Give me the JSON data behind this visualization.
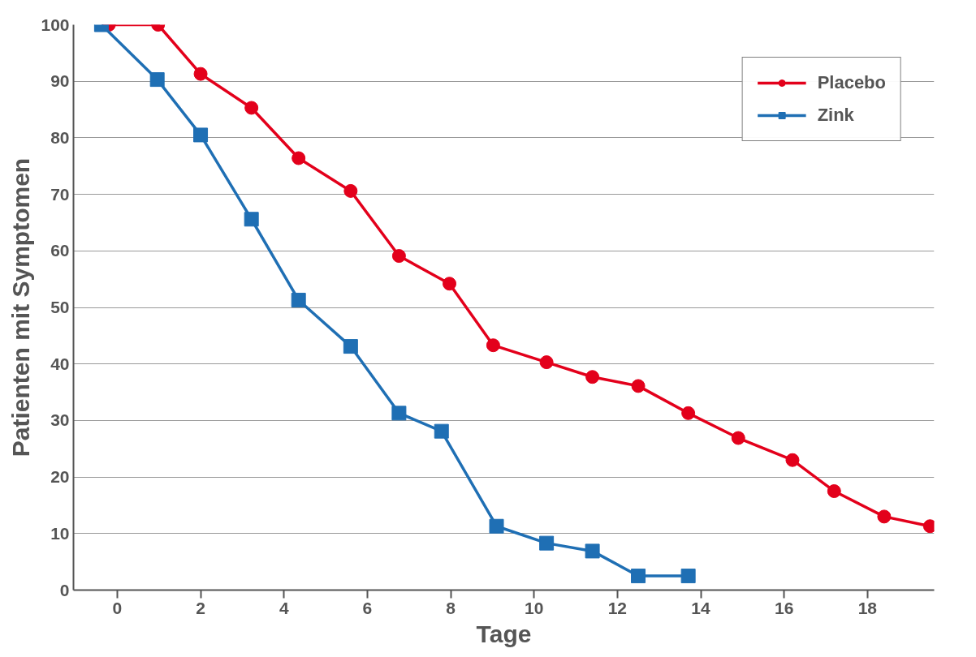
{
  "chart_data": {
    "type": "line",
    "xlabel": "Tage",
    "ylabel": "Patienten mit Symptomen",
    "xlim": [
      -1.05,
      19.6
    ],
    "xticks": [
      0,
      2,
      4,
      6,
      8,
      10,
      12,
      14,
      16,
      18
    ],
    "ylim": [
      0,
      100
    ],
    "yticks": [
      0,
      10,
      20,
      30,
      40,
      50,
      60,
      70,
      80,
      90,
      100
    ],
    "grid": "y",
    "legend": "top right",
    "line_style": "solid",
    "series": [
      {
        "name": "Placebo",
        "color": "#e3001b",
        "marker": "circle",
        "x": [
          -0.2,
          0.98,
          2.0,
          3.22,
          4.35,
          5.6,
          6.76,
          7.97,
          9.02,
          10.3,
          11.4,
          12.5,
          13.7,
          14.9,
          16.2,
          17.2,
          18.4,
          19.5
        ],
        "values": [
          100,
          100,
          91.3,
          85.3,
          76.4,
          70.6,
          59.1,
          54.2,
          43.3,
          40.3,
          37.7,
          36.1,
          31.3,
          26.9,
          23.0,
          17.5,
          13.0,
          11.3
        ]
      },
      {
        "name": "Zink",
        "color": "#1f6fb4",
        "marker": "square",
        "x": [
          -0.38,
          0.96,
          2.0,
          3.22,
          4.35,
          5.6,
          6.76,
          7.78,
          9.1,
          10.3,
          11.4,
          12.5,
          13.7
        ],
        "values": [
          100,
          90.3,
          80.5,
          65.6,
          51.3,
          43.1,
          31.3,
          28.1,
          11.3,
          8.3,
          6.9,
          2.5,
          2.5
        ]
      }
    ]
  }
}
